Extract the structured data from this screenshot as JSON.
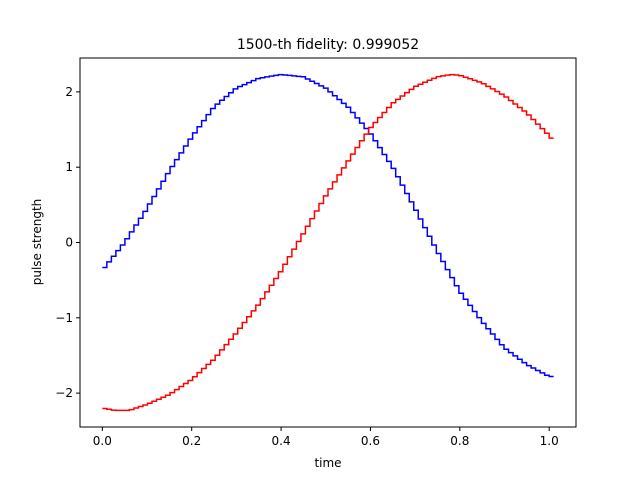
{
  "chart_data": {
    "type": "line",
    "title": "1500-th fidelity: 0.999052",
    "xlabel": "time",
    "ylabel": "pulse strength",
    "xlim": [
      -0.05,
      1.06
    ],
    "ylim": [
      -2.45,
      2.45
    ],
    "xticks": [
      0.0,
      0.2,
      0.4,
      0.6,
      0.8,
      1.0
    ],
    "xtick_labels": [
      "0.0",
      "0.2",
      "0.4",
      "0.6",
      "0.8",
      "1.0"
    ],
    "yticks": [
      -2,
      -1,
      0,
      1,
      2
    ],
    "ytick_labels": [
      "−2",
      "−1",
      "0",
      "1",
      "2"
    ],
    "grid": false,
    "legend": "none",
    "drawstyle": "steps",
    "series": [
      {
        "color": "#0000ff",
        "x": [
          0.0,
          0.05,
          0.1,
          0.15,
          0.2,
          0.25,
          0.3,
          0.35,
          0.4,
          0.45,
          0.5,
          0.55,
          0.6,
          0.65,
          0.7,
          0.75,
          0.8,
          0.85,
          0.9,
          0.95,
          1.0,
          1.01
        ],
        "values": [
          -0.37,
          0.0,
          0.45,
          0.95,
          1.4,
          1.8,
          2.05,
          2.18,
          2.23,
          2.2,
          2.05,
          1.8,
          1.45,
          1.0,
          0.45,
          -0.12,
          -0.65,
          -1.05,
          -1.4,
          -1.62,
          -1.78,
          -1.78
        ]
      },
      {
        "color": "#ff0000",
        "x": [
          0.0,
          0.03,
          0.06,
          0.1,
          0.15,
          0.2,
          0.25,
          0.3,
          0.35,
          0.4,
          0.45,
          0.5,
          0.55,
          0.6,
          0.65,
          0.7,
          0.75,
          0.78,
          0.8,
          0.85,
          0.9,
          0.95,
          1.0,
          1.01
        ],
        "values": [
          -2.2,
          -2.23,
          -2.23,
          -2.15,
          -2.02,
          -1.82,
          -1.55,
          -1.2,
          -0.82,
          -0.38,
          0.12,
          0.62,
          1.08,
          1.52,
          1.85,
          2.07,
          2.2,
          2.23,
          2.22,
          2.12,
          1.95,
          1.72,
          1.42,
          1.35
        ]
      }
    ]
  }
}
